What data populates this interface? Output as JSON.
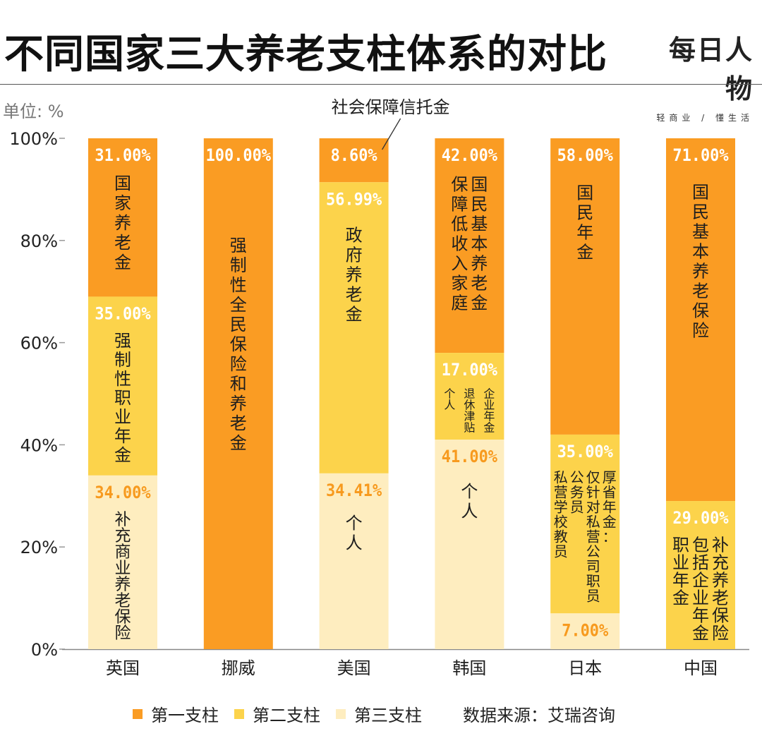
{
  "header": {
    "title": "不同国家三大养老支柱体系的对比",
    "logo_mark": "每日人物",
    "logo_sub": "轻商业 / 懂生活"
  },
  "unit_label": "单位: %",
  "source": "数据来源：艾瑞咨询",
  "colors": {
    "pillar1": "#FA9C23",
    "pillar2": "#FCD34B",
    "pillar3": "#FEEDBF",
    "value_white": "#FFFFFF",
    "value_orange": "#F79A1E"
  },
  "chart_data": {
    "type": "bar",
    "stacked": true,
    "unit": "%",
    "ylim": [
      0,
      100
    ],
    "yticks": [
      "0%",
      "20%",
      "40%",
      "60%",
      "80%",
      "100%"
    ],
    "categories": [
      "英国",
      "挪威",
      "美国",
      "韩国",
      "日本",
      "中国"
    ],
    "series": [
      {
        "name": "第一支柱",
        "values": [
          31.0,
          100.0,
          8.6,
          42.0,
          58.0,
          71.0
        ],
        "value_labels": [
          "31.00%",
          "100.00%",
          "8.60%",
          "42.00%",
          "58.00%",
          "71.00%"
        ],
        "descriptions": [
          [
            "国家养老金"
          ],
          [
            "强制性全民保险和养老金"
          ],
          [],
          [
            "国民基本养老金",
            "保障低收入家庭"
          ],
          [
            "国民年金"
          ],
          [
            "国民基本养老保险"
          ]
        ]
      },
      {
        "name": "第二支柱",
        "values": [
          35.0,
          0,
          56.99,
          17.0,
          35.0,
          29.0
        ],
        "value_labels": [
          "35.00%",
          "",
          "56.99%",
          "17.00%",
          "35.00%",
          "29.00%"
        ],
        "descriptions": [
          [
            "强制性职业年金"
          ],
          [],
          [
            "政府养老金"
          ],
          [
            "企业年金",
            "退休津贴",
            "个人"
          ],
          [
            "厚省年金：",
            "仅针对私营公司职员",
            "公务员",
            "私营学校教员"
          ],
          [
            "补充养老保险",
            "包括企业年金",
            "职业年金"
          ]
        ]
      },
      {
        "name": "第三支柱",
        "values": [
          34.0,
          0,
          34.41,
          41.0,
          7.0,
          0
        ],
        "value_labels": [
          "34.00%",
          "",
          "34.41%",
          "41.00%",
          "7.00%",
          ""
        ],
        "descriptions": [
          [
            "补充商业养老保险"
          ],
          [],
          [
            "个人"
          ],
          [
            "个人"
          ],
          [],
          []
        ]
      }
    ],
    "annotations": [
      {
        "text": "社会保障信托金",
        "category": "美国",
        "series": "第一支柱"
      }
    ]
  }
}
